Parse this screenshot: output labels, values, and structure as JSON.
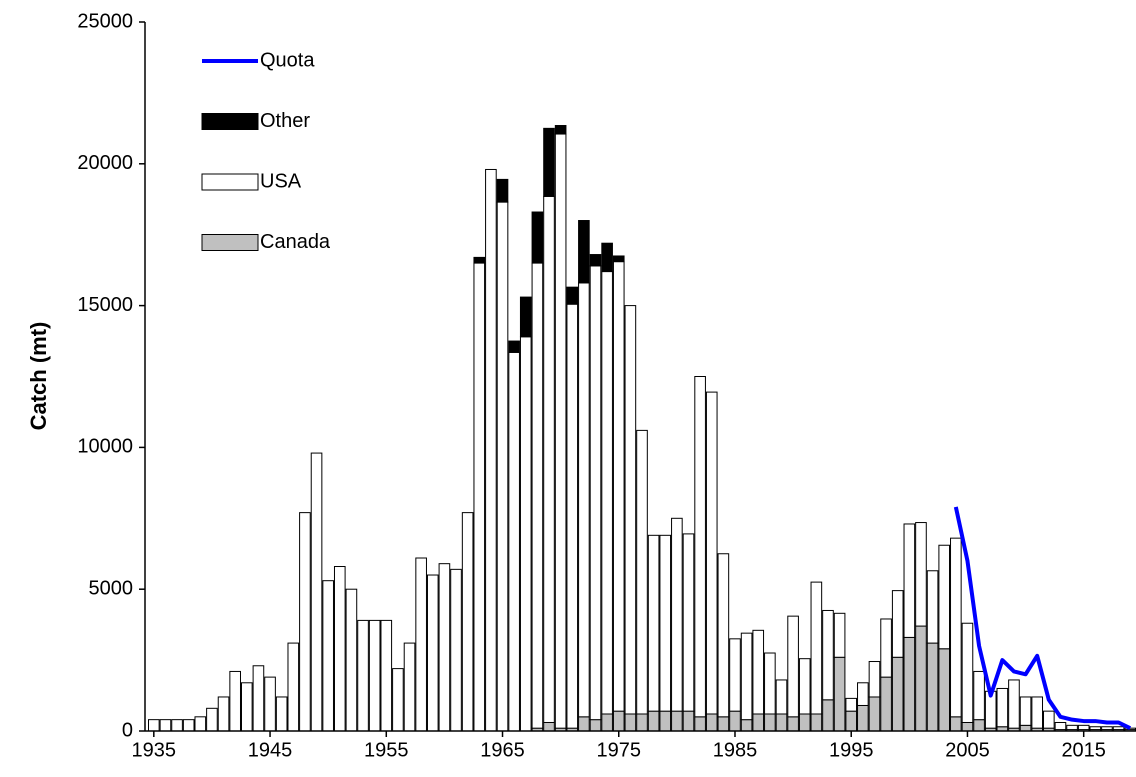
{
  "chart_data": {
    "type": "stacked-bar-line",
    "y_label": "Catch (mt)",
    "categories": [
      "1935",
      null,
      null,
      null,
      null,
      null,
      null,
      null,
      null,
      null,
      "1945",
      null,
      null,
      null,
      null,
      null,
      null,
      null,
      null,
      null,
      "1955",
      null,
      null,
      null,
      null,
      null,
      null,
      null,
      null,
      null,
      "1965",
      null,
      null,
      null,
      null,
      null,
      null,
      null,
      null,
      null,
      "1975",
      null,
      null,
      null,
      null,
      null,
      null,
      null,
      null,
      null,
      "1985",
      null,
      null,
      null,
      null,
      null,
      null,
      null,
      null,
      null,
      "1995",
      null,
      null,
      null,
      null,
      null,
      null,
      null,
      null,
      null,
      "2005",
      null,
      null,
      null,
      null,
      null,
      null,
      null,
      null,
      null,
      "2015",
      null,
      null,
      null,
      null
    ],
    "series": [
      {
        "name": "Canada",
        "color": "#c0c0c0",
        "kind": "bar",
        "values": [
          0,
          0,
          0,
          0,
          0,
          0,
          0,
          0,
          0,
          0,
          0,
          0,
          0,
          0,
          0,
          0,
          0,
          0,
          0,
          0,
          0,
          0,
          0,
          0,
          0,
          0,
          0,
          0,
          0,
          0,
          0,
          0,
          0,
          100,
          300,
          100,
          100,
          500,
          400,
          600,
          700,
          600,
          600,
          700,
          700,
          700,
          700,
          500,
          600,
          500,
          700,
          400,
          600,
          600,
          600,
          500,
          600,
          600,
          1100,
          2600,
          700,
          900,
          1200,
          1900,
          2600,
          3300,
          3700,
          3100,
          2900,
          500,
          300,
          400,
          100,
          150,
          100,
          200,
          100,
          100,
          50,
          50,
          50,
          50,
          50,
          50,
          50
        ]
      },
      {
        "name": "USA",
        "color": "#ffffff",
        "kind": "bar",
        "values": [
          400,
          400,
          400,
          400,
          500,
          800,
          1200,
          2100,
          1700,
          2300,
          1900,
          1200,
          3100,
          7700,
          9800,
          5300,
          5800,
          5000,
          3900,
          3900,
          3900,
          2200,
          3100,
          6100,
          5500,
          5900,
          5700,
          7700,
          16500,
          19800,
          18650,
          13350,
          13900,
          16400,
          18550,
          20950,
          14950,
          15300,
          16000,
          15600,
          15850,
          14400,
          10000,
          6200,
          6200,
          6800,
          6250,
          12000,
          11350,
          5750,
          2550,
          3050,
          2950,
          2150,
          1200,
          3550,
          1950,
          4650,
          3150,
          1550,
          450,
          800,
          1250,
          2050,
          2350,
          4000,
          3650,
          2550,
          3650,
          6300,
          3500,
          1700,
          1300,
          1350,
          1700,
          1000,
          1100,
          600,
          250,
          150,
          150,
          100,
          100,
          100,
          50
        ]
      },
      {
        "name": "Other",
        "color": "#000000",
        "kind": "bar",
        "values": [
          0,
          0,
          0,
          0,
          0,
          0,
          0,
          0,
          0,
          0,
          0,
          0,
          0,
          0,
          0,
          0,
          0,
          0,
          0,
          0,
          0,
          0,
          0,
          0,
          0,
          0,
          0,
          0,
          200,
          0,
          800,
          400,
          1400,
          1800,
          2400,
          300,
          600,
          2200,
          400,
          1000,
          200,
          0,
          0,
          0,
          0,
          0,
          0,
          0,
          0,
          0,
          0,
          0,
          0,
          0,
          0,
          0,
          0,
          0,
          0,
          0,
          0,
          0,
          0,
          0,
          0,
          0,
          0,
          0,
          0,
          0,
          0,
          0,
          0,
          0,
          0,
          0,
          0,
          0,
          0,
          0,
          0,
          0,
          0,
          0,
          0
        ]
      },
      {
        "name": "Quota",
        "color": "#0000ff",
        "kind": "line",
        "values": [
          null,
          null,
          null,
          null,
          null,
          null,
          null,
          null,
          null,
          null,
          null,
          null,
          null,
          null,
          null,
          null,
          null,
          null,
          null,
          null,
          null,
          null,
          null,
          null,
          null,
          null,
          null,
          null,
          null,
          null,
          null,
          null,
          null,
          null,
          null,
          null,
          null,
          null,
          null,
          null,
          null,
          null,
          null,
          null,
          null,
          null,
          null,
          null,
          null,
          null,
          null,
          null,
          null,
          null,
          null,
          null,
          null,
          null,
          null,
          null,
          null,
          null,
          null,
          null,
          null,
          null,
          null,
          null,
          null,
          7900,
          6000,
          3000,
          1250,
          2500,
          2100,
          2000,
          2650,
          1100,
          500,
          400,
          350,
          350,
          300,
          300,
          100
        ]
      }
    ],
    "ylim": [
      0,
      25000
    ],
    "yticks": [
      0,
      5000,
      10000,
      15000,
      20000,
      25000
    ],
    "legend": "upper left"
  }
}
